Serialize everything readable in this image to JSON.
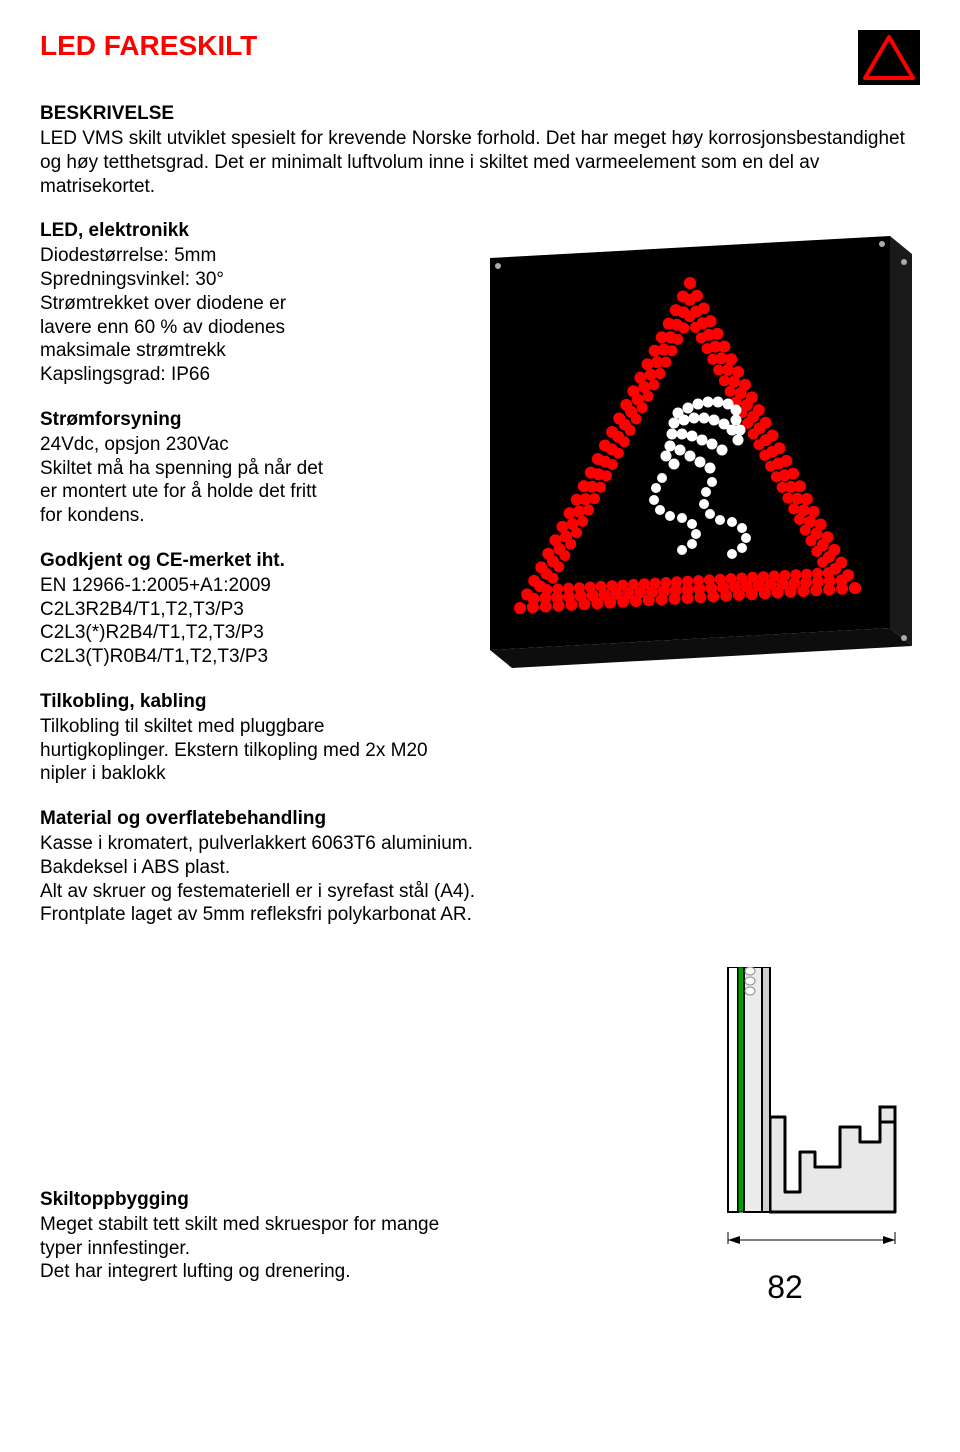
{
  "title": "LED FARESKILT",
  "beskrivelse": {
    "heading": "BESKRIVELSE",
    "text": "LED VMS skilt utviklet spesielt for krevende Norske forhold. Det har meget høy korrosjonsbestandighet og høy tetthetsgrad. Det er minimalt luftvolum inne i skiltet med varmeelement som en del av matrisekortet."
  },
  "led": {
    "heading": "LED, elektronikk",
    "text": "Diodestørrelse: 5mm\nSpredningsvinkel: 30°\nStrømtrekket over diodene er\nlavere enn 60 % av diodenes\nmaksimale strømtrekk\nKapslingsgrad: IP66"
  },
  "strom": {
    "heading": "Strømforsyning",
    "text": "24Vdc, opsjon 230Vac\nSkiltet må ha spenning på når det\ner montert ute for å holde det fritt\nfor kondens."
  },
  "ce": {
    "heading": "Godkjent og CE-merket iht.",
    "text": "EN 12966-1:2005+A1:2009\nC2L3R2B4/T1,T2,T3/P3\nC2L3(*)R2B4/T1,T2,T3/P3\nC2L3(T)R0B4/T1,T2,T3/P3"
  },
  "tilkobling": {
    "heading": "Tilkobling, kabling",
    "text": "Tilkobling til skiltet med pluggbare hurtigkoplinger. Ekstern tilkopling med 2x M20 nipler i baklokk"
  },
  "material": {
    "heading": "Material og overflatebehandling",
    "text": "Kasse i kromatert, pulverlakkert 6063T6 aluminium.\nBakdeksel i ABS plast.\nAlt av skruer og festemateriell er i syrefast stål (A4).\nFrontplate laget av 5mm refleksfri polykarbonat AR."
  },
  "skiltopp": {
    "heading": "Skiltoppbygging",
    "text": "Meget stabilt tett skilt med  skruespor for mange typer innfestinger.\nDet har integrert lufting og drenering."
  },
  "dimension": "82",
  "colors": {
    "title": "#ff0000",
    "icon_bg": "#000000",
    "icon_triangle": "#ff0000",
    "icon_mark": "#ffffff",
    "sign_bg": "#000000",
    "led_red": "#ff0000",
    "led_white": "#ffffff",
    "profile_outline": "#000000",
    "profile_green": "#00a000",
    "profile_fill": "#e8e8e8"
  }
}
